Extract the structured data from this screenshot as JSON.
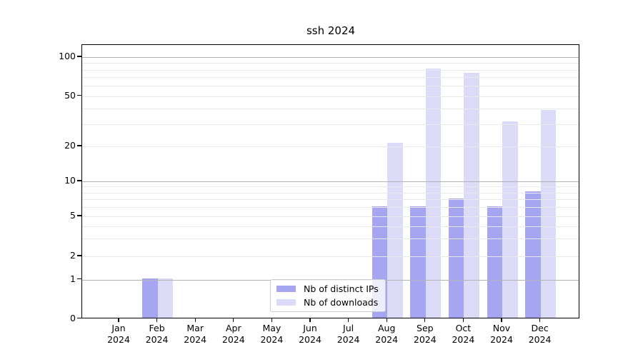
{
  "chart_data": {
    "type": "bar",
    "title": "ssh 2024",
    "categories": [
      "Jan",
      "Feb",
      "Mar",
      "Apr",
      "May",
      "Jun",
      "Jul",
      "Aug",
      "Sep",
      "Oct",
      "Nov",
      "Dec"
    ],
    "category_year": "2024",
    "series": [
      {
        "name": "Nb of distinct IPs",
        "color": "#a5a5f1",
        "values": [
          0,
          1,
          0,
          0,
          0,
          0,
          0,
          6,
          6,
          7,
          6,
          8
        ]
      },
      {
        "name": "Nb of downloads",
        "color": "#dbdbf8",
        "values": [
          0,
          1,
          0,
          0,
          0,
          0,
          0,
          21,
          80,
          74,
          31,
          38
        ]
      }
    ],
    "ylabel": "",
    "xlabel": "",
    "yscale": "log-like (linear segment 0 to 1, logarithmic above)",
    "ylim": [
      0,
      124
    ],
    "y_ticks_labeled": [
      0,
      1,
      2,
      5,
      10,
      20,
      50,
      100
    ],
    "y_major_gridlines": [
      1,
      10,
      100
    ],
    "y_minor_gridlines": [
      2,
      3,
      4,
      5,
      6,
      7,
      8,
      9,
      20,
      30,
      40,
      50,
      60,
      70,
      80,
      90
    ],
    "grid": "on, drawn above bars",
    "legend": {
      "position": "inside, lower center",
      "entries": [
        "Nb of distinct IPs",
        "Nb of downloads"
      ]
    },
    "colors": {
      "minor_grid": "#e8e8e8",
      "major_grid": "#b3b3b3",
      "axis": "#000000",
      "background": "#ffffff"
    }
  }
}
